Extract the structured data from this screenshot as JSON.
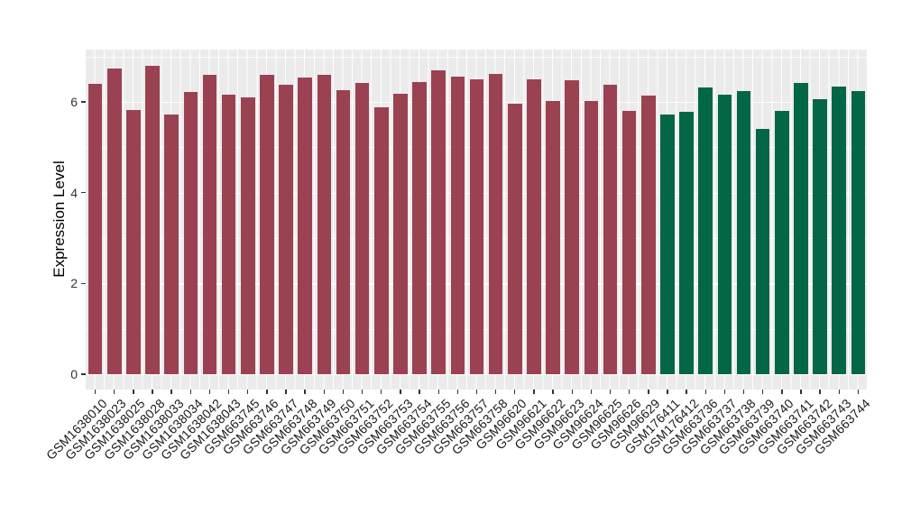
{
  "chart_data": {
    "type": "bar",
    "title": "",
    "xlabel": "",
    "ylabel": "Expression Level",
    "ylim": [
      0,
      7.15
    ],
    "yticks": [
      0,
      2,
      4,
      6
    ],
    "yticks_minor": [
      1,
      3,
      5,
      7
    ],
    "grid": true,
    "legend_position": "none",
    "x_tick_rotation": 45,
    "panel_background": "#EBEBEB",
    "gridline_color": "#FFFFFF",
    "axis_text_color": "#1A1A1A",
    "categories": [
      "GSM1638010",
      "GSM1638023",
      "GSM1638025",
      "GSM1638028",
      "GSM1638033",
      "GSM1638034",
      "GSM1638042",
      "GSM1638043",
      "GSM663745",
      "GSM663746",
      "GSM663747",
      "GSM663748",
      "GSM663749",
      "GSM663750",
      "GSM663751",
      "GSM663752",
      "GSM663753",
      "GSM663754",
      "GSM663755",
      "GSM663756",
      "GSM663757",
      "GSM663758",
      "GSM96620",
      "GSM96621",
      "GSM96622",
      "GSM96623",
      "GSM96624",
      "GSM96625",
      "GSM96626",
      "GSM96629",
      "GSM176411",
      "GSM176412",
      "GSM663736",
      "GSM663737",
      "GSM663738",
      "GSM663739",
      "GSM663740",
      "GSM663741",
      "GSM663742",
      "GSM663743",
      "GSM663744"
    ],
    "values": [
      6.4,
      6.73,
      5.81,
      6.79,
      5.73,
      6.22,
      6.6,
      6.16,
      6.09,
      6.6,
      6.37,
      6.54,
      6.6,
      6.25,
      6.42,
      5.88,
      6.17,
      6.44,
      6.69,
      6.56,
      6.5,
      6.61,
      5.95,
      6.5,
      6.01,
      6.47,
      6.02,
      6.38,
      5.79,
      6.14,
      5.72,
      5.77,
      6.31,
      6.16,
      6.24,
      5.41,
      5.79,
      6.42,
      6.06,
      6.33,
      6.23
    ],
    "bar_groups": [
      "group1",
      "group1",
      "group1",
      "group1",
      "group1",
      "group1",
      "group1",
      "group1",
      "group1",
      "group1",
      "group1",
      "group1",
      "group1",
      "group1",
      "group1",
      "group1",
      "group1",
      "group1",
      "group1",
      "group1",
      "group1",
      "group1",
      "group1",
      "group1",
      "group1",
      "group1",
      "group1",
      "group1",
      "group1",
      "group1",
      "group2",
      "group2",
      "group2",
      "group2",
      "group2",
      "group2",
      "group2",
      "group2",
      "group2",
      "group2",
      "group2"
    ],
    "group_colors": {
      "group1": "#9A4252",
      "group2": "#026647"
    }
  }
}
